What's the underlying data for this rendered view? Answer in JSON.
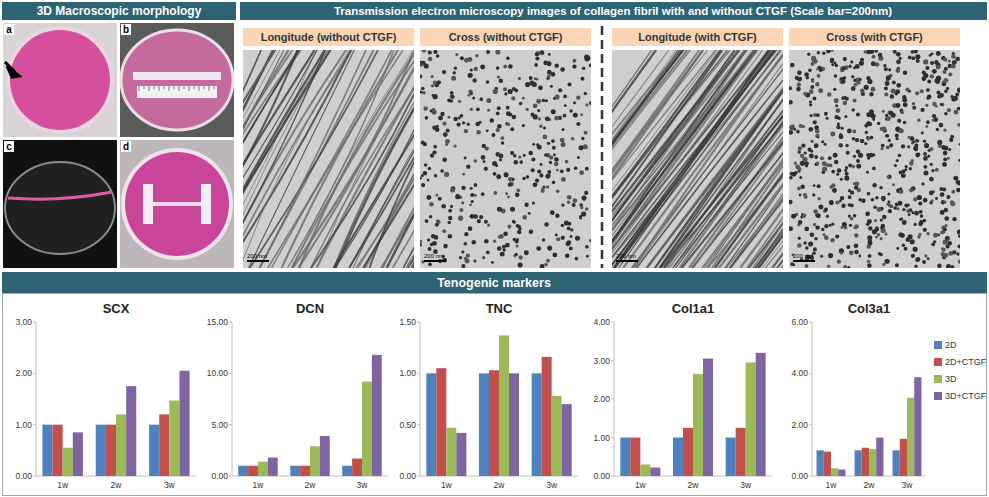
{
  "panels": {
    "morphology": {
      "title": "3D Macroscopic morphology",
      "photos": [
        "a",
        "b",
        "c",
        "d"
      ]
    },
    "tem": {
      "title": "Transmission electron microscopy images of collagen fibril with and without CTGF (Scale bar=200nm)",
      "images": [
        {
          "label": "Longitude (without CTGF)",
          "scale_bar": "200 nm"
        },
        {
          "label": "Cross (without CTGF)",
          "scale_bar": "200 nm"
        },
        {
          "label": "Longitude (with CTGF)",
          "scale_bar": "200 nm"
        },
        {
          "label": "Cross (with CTGF)",
          "scale_bar": "200 nm"
        }
      ]
    }
  },
  "section_title": "Tenogenic markers",
  "chart_data": [
    {
      "type": "bar",
      "title": "SCX",
      "categories": [
        "1w",
        "2w",
        "3w"
      ],
      "series": [
        {
          "color": "#4f81bd",
          "values": [
            1.0,
            1.0,
            1.0
          ]
        },
        {
          "color": "#c0504d",
          "values": [
            1.0,
            1.0,
            1.2
          ]
        },
        {
          "color": "#9bbb59",
          "values": [
            0.55,
            1.2,
            1.47
          ]
        },
        {
          "color": "#8064a2",
          "values": [
            0.85,
            1.75,
            2.05
          ]
        }
      ],
      "ylim": [
        0,
        3
      ],
      "yticks": [
        {
          "value": 0,
          "label": "0.00"
        },
        {
          "value": 1,
          "label": "1.00"
        },
        {
          "value": 2,
          "label": "2.00"
        },
        {
          "value": 3,
          "label": "3.00"
        }
      ],
      "grid": false
    },
    {
      "type": "bar",
      "title": "DCN",
      "categories": [
        "1w",
        "2w",
        "3w"
      ],
      "series": [
        {
          "color": "#4f81bd",
          "values": [
            1.0,
            1.0,
            1.0
          ]
        },
        {
          "color": "#c0504d",
          "values": [
            1.0,
            1.0,
            1.7
          ]
        },
        {
          "color": "#9bbb59",
          "values": [
            1.4,
            2.9,
            9.2
          ]
        },
        {
          "color": "#8064a2",
          "values": [
            1.8,
            3.9,
            11.8
          ]
        }
      ],
      "ylim": [
        0,
        15
      ],
      "yticks": [
        {
          "value": 0,
          "label": "0.00"
        },
        {
          "value": 5,
          "label": "5.00"
        },
        {
          "value": 10,
          "label": "10.00"
        },
        {
          "value": 15,
          "label": "15.00"
        }
      ],
      "grid": false
    },
    {
      "type": "bar",
      "title": "TNC",
      "categories": [
        "1w",
        "2w",
        "3w"
      ],
      "series": [
        {
          "color": "#4f81bd",
          "values": [
            1.0,
            1.0,
            1.0
          ]
        },
        {
          "color": "#c0504d",
          "values": [
            1.05,
            1.03,
            1.16
          ]
        },
        {
          "color": "#9bbb59",
          "values": [
            0.47,
            1.37,
            0.78
          ]
        },
        {
          "color": "#8064a2",
          "values": [
            0.42,
            1.0,
            0.7
          ]
        }
      ],
      "ylim": [
        0,
        1.5
      ],
      "yticks": [
        {
          "value": 0,
          "label": "0.00"
        },
        {
          "value": 0.5,
          "label": "0.50"
        },
        {
          "value": 1,
          "label": "1.00"
        },
        {
          "value": 1.5,
          "label": "1.50"
        }
      ],
      "grid": false
    },
    {
      "type": "bar",
      "title": "Col1a1",
      "categories": [
        "1w",
        "2w",
        "3w"
      ],
      "series": [
        {
          "color": "#4f81bd",
          "values": [
            1.0,
            1.0,
            1.0
          ]
        },
        {
          "color": "#c0504d",
          "values": [
            1.0,
            1.25,
            1.25
          ]
        },
        {
          "color": "#9bbb59",
          "values": [
            0.3,
            2.65,
            2.95
          ]
        },
        {
          "color": "#8064a2",
          "values": [
            0.22,
            3.05,
            3.2
          ]
        }
      ],
      "ylim": [
        0,
        4
      ],
      "yticks": [
        {
          "value": 0,
          "label": "0.00"
        },
        {
          "value": 1,
          "label": "1.00"
        },
        {
          "value": 2,
          "label": "2.00"
        },
        {
          "value": 3,
          "label": "3.00"
        },
        {
          "value": 4,
          "label": "4.00"
        }
      ],
      "grid": false
    },
    {
      "type": "bar",
      "title": "Col3a1",
      "categories": [
        "1w",
        "2w",
        "3w"
      ],
      "series": [
        {
          "name": "2D",
          "color": "#4f81bd",
          "values": [
            1.0,
            1.0,
            1.0
          ]
        },
        {
          "name": "2D+CTGF",
          "color": "#c0504d",
          "values": [
            0.95,
            1.1,
            1.45
          ]
        },
        {
          "name": "3D",
          "color": "#9bbb59",
          "values": [
            0.3,
            1.05,
            3.05
          ]
        },
        {
          "name": "3D+CTGF",
          "color": "#8064a2",
          "values": [
            0.25,
            1.5,
            3.85
          ]
        }
      ],
      "ylim": [
        0,
        6
      ],
      "yticks": [
        {
          "value": 0,
          "label": "0.00"
        },
        {
          "value": 2,
          "label": "2.00"
        },
        {
          "value": 4,
          "label": "4.00"
        },
        {
          "value": 6,
          "label": "6.00"
        }
      ],
      "grid": false,
      "legend": "right"
    }
  ]
}
